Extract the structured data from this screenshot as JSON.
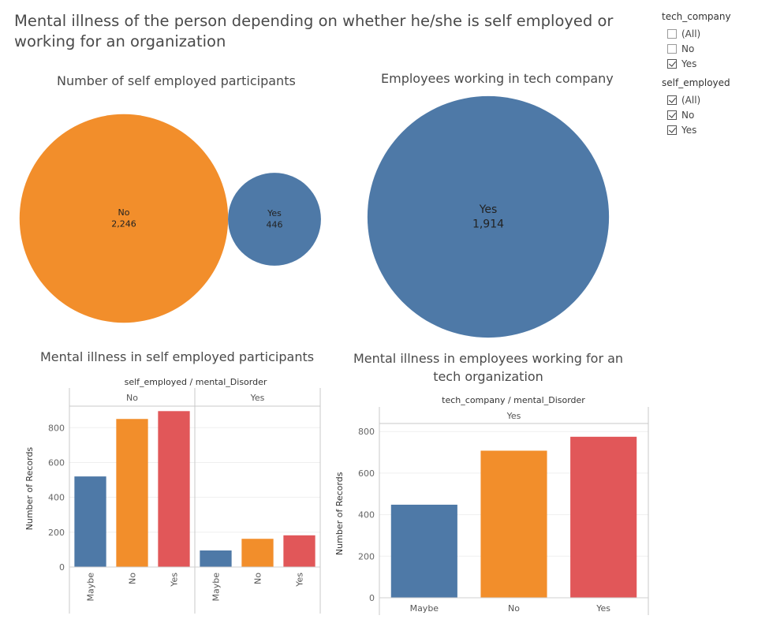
{
  "title": "Mental illness of the person depending on whether he/she is self employed or working for an organization",
  "filters": [
    {
      "title": "tech_company",
      "items": [
        {
          "label": "(All)",
          "checked": false
        },
        {
          "label": "No",
          "checked": false
        },
        {
          "label": "Yes",
          "checked": true
        }
      ]
    },
    {
      "title": "self_employed",
      "items": [
        {
          "label": "(All)",
          "checked": true
        },
        {
          "label": "No",
          "checked": true
        },
        {
          "label": "Yes",
          "checked": true
        }
      ]
    }
  ],
  "colors": {
    "blue": "#4e79a7",
    "orange": "#f28e2b",
    "red": "#e15759"
  },
  "chart_data": [
    {
      "type": "bubble",
      "title": "Number of self employed participants",
      "bubbles": [
        {
          "label": "No",
          "value": 2246,
          "value_text": "2,246",
          "color": "#f28e2b"
        },
        {
          "label": "Yes",
          "value": 446,
          "value_text": "446",
          "color": "#4e79a7"
        }
      ]
    },
    {
      "type": "bubble",
      "title": "Employees working in tech company",
      "bubbles": [
        {
          "label": "Yes",
          "value": 1914,
          "value_text": "1,914",
          "color": "#4e79a7"
        }
      ]
    },
    {
      "type": "bar",
      "title": "Mental illness in self employed participants",
      "header": "self_employed / mental_Disorder",
      "ylabel": "Number of Records",
      "ylim": [
        0,
        900
      ],
      "yticks": [
        0,
        200,
        400,
        600,
        800
      ],
      "panes": [
        {
          "label": "No",
          "categories": [
            "Maybe",
            "No",
            "Yes"
          ],
          "values": [
            520,
            850,
            895
          ]
        },
        {
          "label": "Yes",
          "categories": [
            "Maybe",
            "No",
            "Yes"
          ],
          "values": [
            95,
            162,
            182
          ]
        }
      ],
      "category_colors": {
        "Maybe": "#4e79a7",
        "No": "#f28e2b",
        "Yes": "#e15759"
      }
    },
    {
      "type": "bar",
      "title": "Mental illness in employees working for an tech organization",
      "header": "tech_company / mental_Disorder",
      "ylabel": "Number of Records",
      "ylim": [
        0,
        810
      ],
      "yticks": [
        0,
        200,
        400,
        600,
        800
      ],
      "panes": [
        {
          "label": "Yes",
          "categories": [
            "Maybe",
            "No",
            "Yes"
          ],
          "values": [
            448,
            708,
            775
          ]
        }
      ],
      "category_colors": {
        "Maybe": "#4e79a7",
        "No": "#f28e2b",
        "Yes": "#e15759"
      }
    }
  ]
}
